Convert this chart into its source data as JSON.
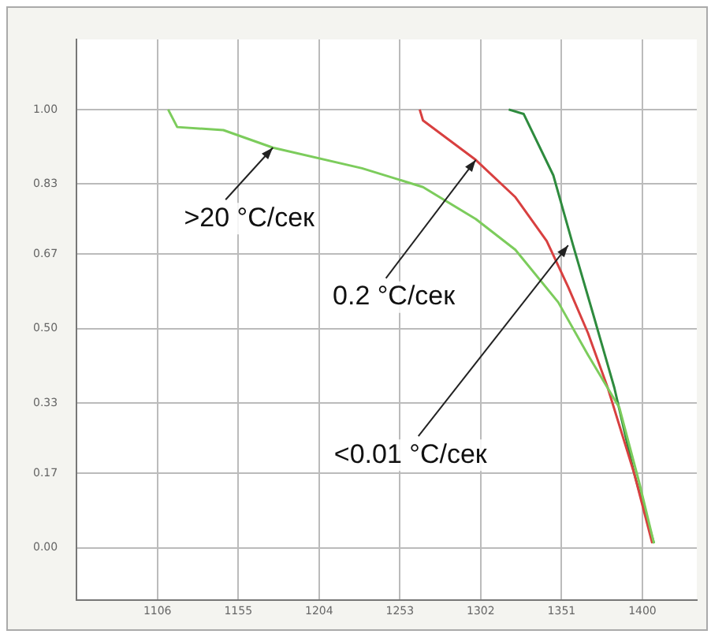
{
  "chart_data": {
    "type": "line",
    "xlim": [
      1057,
      1433
    ],
    "xticks": [
      1106,
      1155,
      1204,
      1253,
      1302,
      1351,
      1400
    ],
    "ylim": [
      -0.12,
      1.16
    ],
    "yticks": [
      {
        "value": 0,
        "label": "0.00"
      },
      {
        "value": 0.17,
        "label": "0.17"
      },
      {
        "value": 0.33,
        "label": "0.33"
      },
      {
        "value": 0.5,
        "label": "0.50"
      },
      {
        "value": 0.67,
        "label": "0.67"
      },
      {
        "value": 0.83,
        "label": "0.83"
      },
      {
        "value": 1,
        "label": "1.00"
      }
    ],
    "grid": true,
    "legend": false,
    "marker": "none",
    "line_style": "solid",
    "series": [
      {
        "color": "#7ccc5c",
        "x": [
          1112.5,
          1118,
          1146,
          1176,
          1230,
          1267,
          1299,
          1323,
          1349,
          1367,
          1386,
          1398,
          1407
        ],
        "values": [
          1.0,
          0.96,
          0.953,
          0.913,
          0.866,
          0.823,
          0.75,
          0.68,
          0.56,
          0.44,
          0.32,
          0.15,
          0.01
        ]
      },
      {
        "color": "#d84040",
        "x": [
          1265,
          1267,
          1299,
          1323,
          1342,
          1355,
          1367,
          1379,
          1395,
          1406
        ],
        "values": [
          1.0,
          0.975,
          0.885,
          0.8,
          0.7,
          0.595,
          0.49,
          0.365,
          0.17,
          0.01
        ]
      },
      {
        "color": "#2e8b3e",
        "x": [
          1319,
          1328,
          1346,
          1358,
          1370,
          1383,
          1395,
          1407
        ],
        "values": [
          1.0,
          0.99,
          0.85,
          0.69,
          0.535,
          0.365,
          0.17,
          0.01
        ]
      }
    ],
    "annotations": [
      {
        "text": ">20 °C/сек",
        "x": 1176,
        "y": 0.913
      },
      {
        "text": "0.2 °C/сек",
        "x": 1299,
        "y": 0.885
      },
      {
        "text": "<0.01 °C/сек",
        "x": 1355,
        "y": 0.69
      }
    ]
  }
}
